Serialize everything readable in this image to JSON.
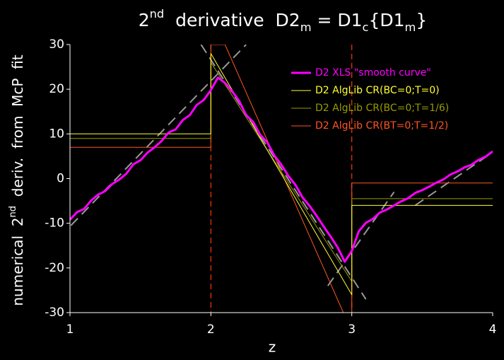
{
  "chart_data": {
    "type": "line",
    "title": [
      {
        "text": "2"
      },
      {
        "text": "nd",
        "style": "sup"
      },
      {
        "text": "  derivative  D2"
      },
      {
        "text": "m",
        "style": "sub"
      },
      {
        "text": " = D1"
      },
      {
        "text": "c",
        "style": "sub"
      },
      {
        "text": "{D1"
      },
      {
        "text": "m",
        "style": "sub"
      },
      {
        "text": "}"
      }
    ],
    "y_label": [
      {
        "text": "numerical  2"
      },
      {
        "text": "nd",
        "style": "sup"
      },
      {
        "text": "  deriv.  from  McP  fit"
      }
    ],
    "x_label": "z",
    "xlim": [
      1,
      4
    ],
    "xticks": [
      1,
      2,
      3,
      4
    ],
    "ylim": [
      -30,
      30
    ],
    "yticks": [
      -30,
      -20,
      -10,
      0,
      10,
      20,
      30
    ],
    "grid": false,
    "legend": "upper-right",
    "series": [
      {
        "name": "D2 XLS \"smooth curve\"",
        "color": "#ff00ff",
        "width": 3,
        "x": [
          1.0,
          1.05,
          1.1,
          1.15,
          1.2,
          1.25,
          1.3,
          1.35,
          1.4,
          1.45,
          1.5,
          1.55,
          1.6,
          1.65,
          1.7,
          1.75,
          1.8,
          1.85,
          1.9,
          1.95,
          2.0,
          2.05,
          2.1,
          2.15,
          2.2,
          2.25,
          2.3,
          2.35,
          2.4,
          2.45,
          2.5,
          2.55,
          2.6,
          2.65,
          2.7,
          2.75,
          2.8,
          2.85,
          2.9,
          2.95,
          3.0,
          3.05,
          3.1,
          3.15,
          3.2,
          3.25,
          3.3,
          3.35,
          3.4,
          3.45,
          3.5,
          3.55,
          3.6,
          3.65,
          3.7,
          3.75,
          3.8,
          3.85,
          3.9,
          3.95,
          4.0
        ],
        "values": [
          -9.2,
          -7.5,
          -6.8,
          -4.9,
          -3.6,
          -2.8,
          -1.2,
          -0.2,
          1.1,
          3.2,
          4.1,
          5.8,
          7.0,
          8.4,
          10.3,
          11.0,
          13.1,
          14.2,
          16.5,
          17.6,
          19.8,
          22.6,
          21.4,
          19.6,
          17.4,
          14.2,
          12.7,
          9.8,
          8.1,
          5.2,
          3.1,
          0.6,
          -1.4,
          -4.2,
          -6.1,
          -8.3,
          -10.7,
          -13.0,
          -15.4,
          -18.6,
          -16.2,
          -11.8,
          -9.9,
          -9.0,
          -7.6,
          -6.9,
          -6.0,
          -5.1,
          -4.4,
          -3.2,
          -2.6,
          -1.8,
          -0.9,
          -0.2,
          0.9,
          1.6,
          2.5,
          3.1,
          4.2,
          4.9,
          6.1
        ]
      },
      {
        "name": "D2 AlgLib CR(BC=0;T=0)",
        "color": "#ffff33",
        "width": 1,
        "x": [
          1,
          2,
          2,
          3,
          3,
          4
        ],
        "values": [
          10,
          10,
          28,
          -26,
          -6,
          -6
        ]
      },
      {
        "name": "D2 AlgLib CR(BC=0;T=1/6)",
        "color": "#999900",
        "width": 1,
        "x": [
          1,
          2,
          2,
          3,
          3,
          4
        ],
        "values": [
          9,
          9,
          26,
          -23,
          -4.5,
          -4.5
        ]
      },
      {
        "name": "D2 AlgLib CR(BT=0;T=1/2)",
        "color": "#ff5522",
        "width": 1,
        "x": [
          1,
          2,
          2,
          2.1,
          2.94,
          3,
          3,
          4
        ],
        "values": [
          7,
          7,
          30,
          30,
          -30,
          -30,
          -1,
          -1
        ]
      }
    ],
    "reference_lines": [
      {
        "color": "#999999",
        "x": [
          0.93,
          2.25
        ],
        "values": [
          -13,
          30
        ]
      },
      {
        "color": "#999999",
        "x": [
          1.93,
          3.1
        ],
        "values": [
          30,
          -27
        ]
      },
      {
        "color": "#999999",
        "x": [
          2.83,
          3.3
        ],
        "values": [
          -24,
          -3
        ]
      },
      {
        "color": "#999999",
        "x": [
          3.45,
          4.05
        ],
        "values": [
          -6,
          7
        ]
      }
    ],
    "vlines": {
      "color": "#ff3300",
      "x": [
        2,
        3
      ]
    }
  }
}
